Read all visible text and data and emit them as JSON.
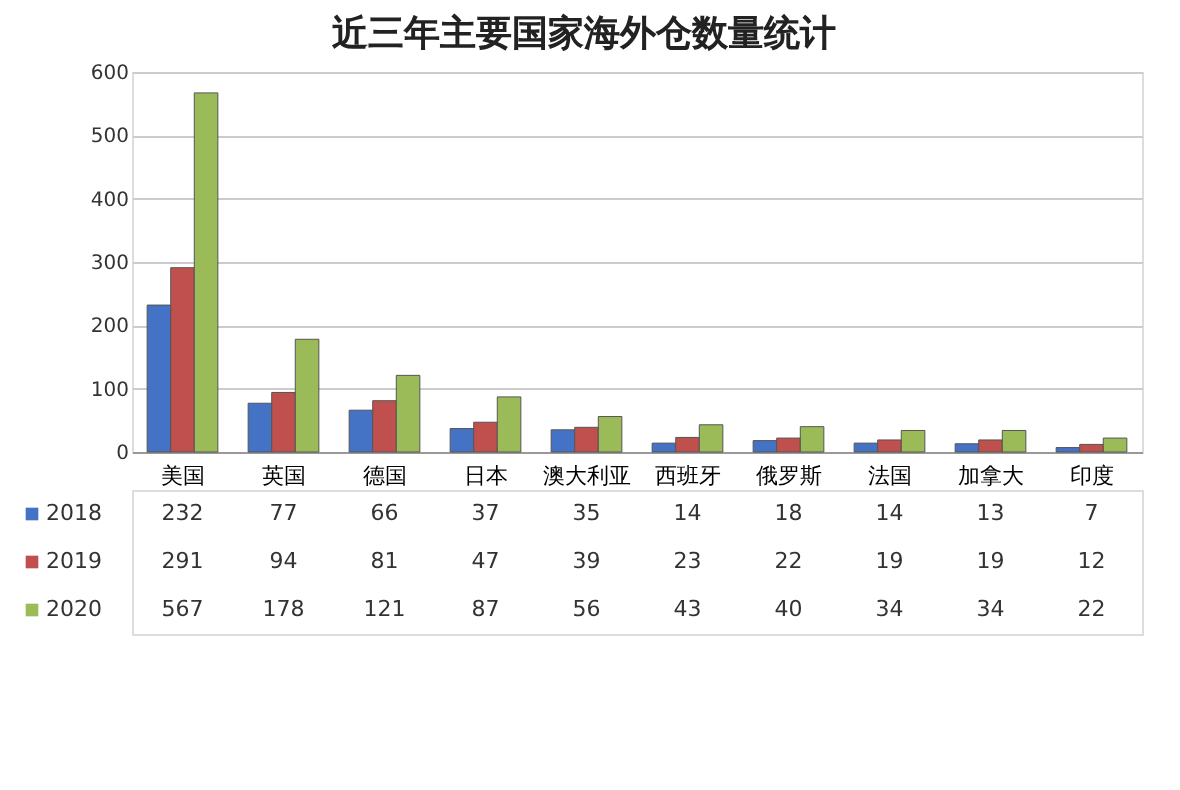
{
  "chart_data": {
    "type": "bar",
    "title": "近三年主要国家海外仓数量统计",
    "categories": [
      "美国",
      "英国",
      "德国",
      "日本",
      "澳大利亚",
      "西班牙",
      "俄罗斯",
      "法国",
      "加拿大",
      "印度"
    ],
    "series": [
      {
        "name": "2018",
        "color": "#4472c4",
        "values": [
          232,
          77,
          66,
          37,
          35,
          14,
          18,
          14,
          13,
          7
        ]
      },
      {
        "name": "2019",
        "color": "#c0504d",
        "values": [
          291,
          94,
          81,
          47,
          39,
          23,
          22,
          19,
          19,
          12
        ]
      },
      {
        "name": "2020",
        "color": "#9bbb59",
        "values": [
          567,
          178,
          121,
          87,
          56,
          43,
          40,
          34,
          34,
          22
        ]
      }
    ],
    "ylim": [
      0,
      600
    ],
    "yticks": [
      0,
      100,
      200,
      300,
      400,
      500,
      600
    ],
    "grid": "y",
    "data_labels": true,
    "legend": "left"
  }
}
